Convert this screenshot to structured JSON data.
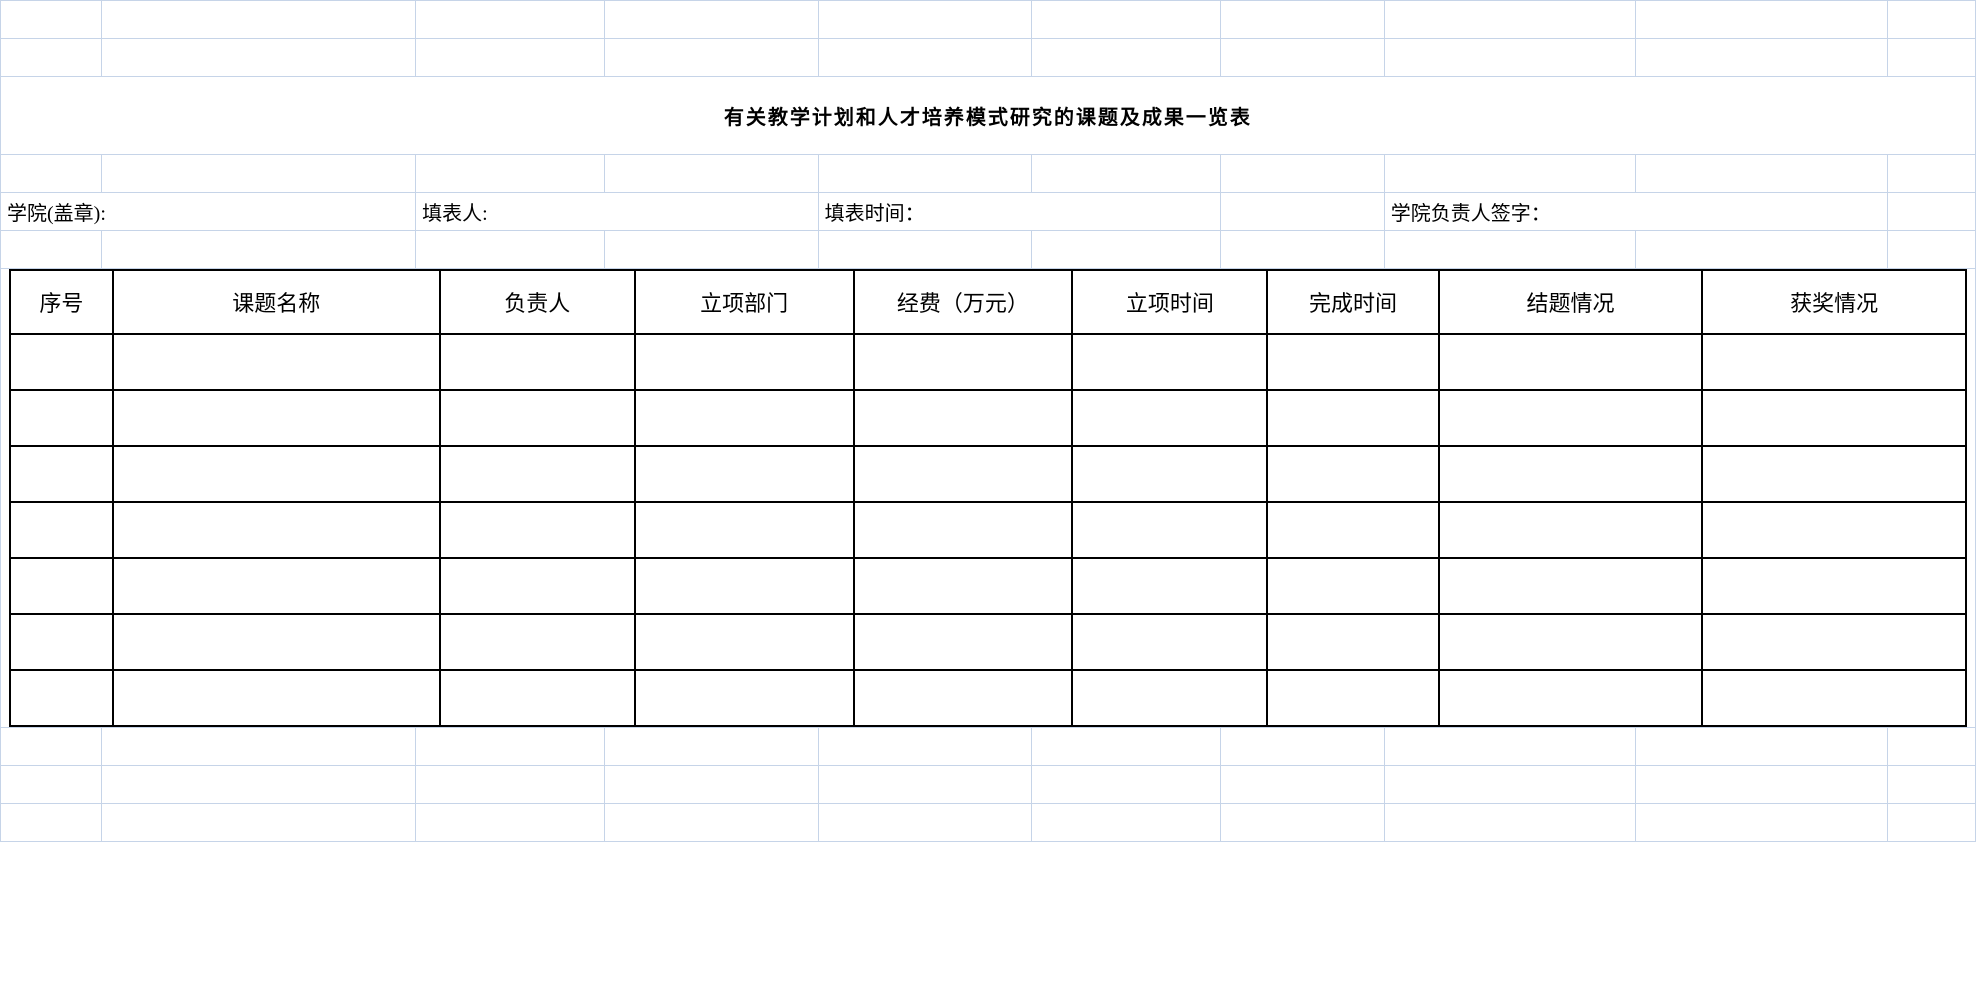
{
  "title": "有关教学计划和人才培养模式研究的课题及成果一览表",
  "meta": {
    "school_label": "学院(盖章):",
    "filler_label": "填表人:",
    "fill_time_label": "填表时间：",
    "signer_label": "学院负责人签字："
  },
  "columns": [
    "序号",
    "课题名称",
    "负责人",
    "立项部门",
    "经费（万元）",
    "立项时间",
    "完成时间",
    "结题情况",
    "获奖情况"
  ],
  "rows": [
    [
      "",
      "",
      "",
      "",
      "",
      "",
      "",
      "",
      ""
    ],
    [
      "",
      "",
      "",
      "",
      "",
      "",
      "",
      "",
      ""
    ],
    [
      "",
      "",
      "",
      "",
      "",
      "",
      "",
      "",
      ""
    ],
    [
      "",
      "",
      "",
      "",
      "",
      "",
      "",
      "",
      ""
    ],
    [
      "",
      "",
      "",
      "",
      "",
      "",
      "",
      "",
      ""
    ],
    [
      "",
      "",
      "",
      "",
      "",
      "",
      "",
      "",
      ""
    ],
    [
      "",
      "",
      "",
      "",
      "",
      "",
      "",
      "",
      ""
    ]
  ],
  "style": {
    "grid_color": "#c6d4e8",
    "data_border_color": "#000000",
    "title_fontsize": 34,
    "header_fontsize": 22,
    "meta_fontsize": 20
  }
}
